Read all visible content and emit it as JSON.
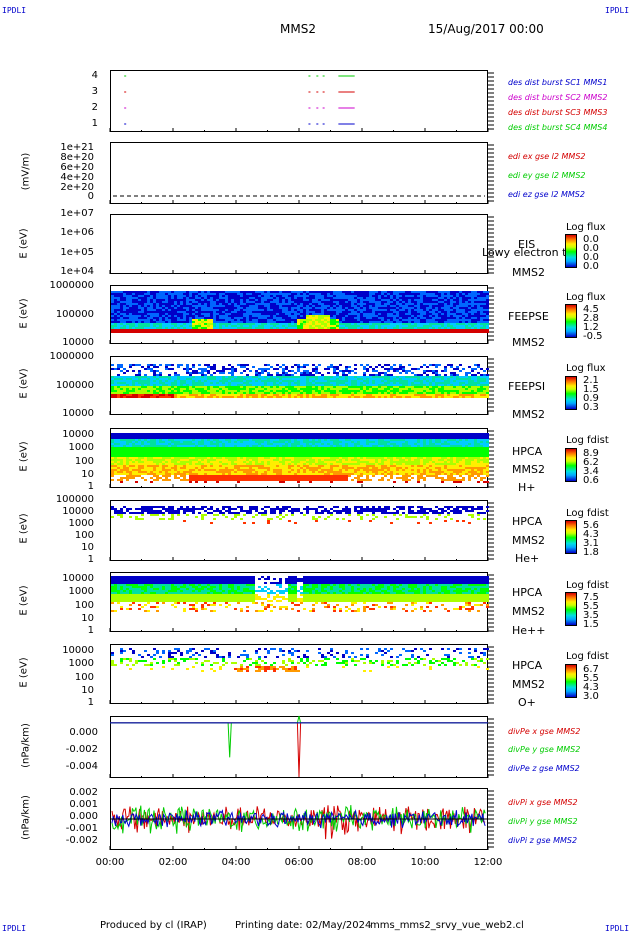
{
  "corner_label": "IPDLI",
  "header": {
    "spacecraft": "MMS2",
    "date": "15/Aug/2017 00:00"
  },
  "footer": {
    "produced_by": "Produced by cl (IRAP)",
    "printing_date": "Printing date: 02/May/2024",
    "file": "mms_mms2_srvy_vue_web2.cl"
  },
  "x_axis": {
    "ticks": [
      "00:00",
      "02:00",
      "04:00",
      "06:00",
      "08:00",
      "10:00",
      "12:00"
    ],
    "range_hours": [
      0,
      12
    ]
  },
  "colors": {
    "red": "#d40000",
    "green": "#00cc00",
    "blue": "#0000cc",
    "magenta": "#cc00cc"
  },
  "panels": {
    "dist": {
      "yticks": [
        "4",
        "3",
        "2",
        "1"
      ],
      "labels": [
        {
          "text": "des dist burst SC1 MMS1",
          "color": "#0000cc"
        },
        {
          "text": "des dist burst SC2 MMS2",
          "color": "#cc00cc"
        },
        {
          "text": "des dist burst SC3 MMS3",
          "color": "#d40000"
        },
        {
          "text": "des dist burst SC4 MMS4",
          "color": "#00cc00"
        }
      ]
    },
    "edi": {
      "ylabel": "(mV/m)",
      "yticks": [
        "1e+21",
        "8e+20",
        "6e+20",
        "4e+20",
        "2e+20",
        "0"
      ],
      "labels": [
        {
          "text": "edi ex gse l2 MMS2",
          "color": "#d40000"
        },
        {
          "text": "edi ey gse l2 MMS2",
          "color": "#00cc00"
        },
        {
          "text": "edi ez gse l2 MMS2",
          "color": "#0000cc"
        }
      ]
    },
    "eis": {
      "ylabel": "E (eV)",
      "yticks": [
        "1e+07",
        "1e+06",
        "1e+05",
        "1e+04"
      ],
      "instrument": "EIS",
      "overlay": "Lowy electron to",
      "spacecraft": "MMS2",
      "cb_title": "Log flux",
      "cb_values": [
        "0.0",
        "0.0",
        "0.0",
        "0.0"
      ]
    },
    "feepse": {
      "ylabel": "E (eV)",
      "yticks": [
        "1000000",
        "100000",
        "10000"
      ],
      "instrument": "FEEPSE",
      "spacecraft": "MMS2",
      "cb_title": "Log flux",
      "cb_values": [
        "4.5",
        "2.8",
        "1.2",
        "-0.5"
      ]
    },
    "feepsi": {
      "ylabel": "E (eV)",
      "yticks": [
        "1000000",
        "100000",
        "10000"
      ],
      "instrument": "FEEPSI",
      "spacecraft": "MMS2",
      "cb_title": "Log flux",
      "cb_values": [
        "2.1",
        "1.5",
        "0.9",
        "0.3"
      ]
    },
    "hpca_h": {
      "ylabel": "E (eV)",
      "yticks": [
        "10000",
        "1000",
        "100",
        "10",
        "1"
      ],
      "instrument": "HPCA",
      "spacecraft": "MMS2",
      "species": "H+",
      "cb_title": "Log fdist",
      "cb_values": [
        "8.9",
        "6.2",
        "3.4",
        "0.6"
      ]
    },
    "hpca_he": {
      "ylabel": "E (eV)",
      "yticks": [
        "100000",
        "10000",
        "1000",
        "100",
        "10",
        "1"
      ],
      "instrument": "HPCA",
      "spacecraft": "MMS2",
      "species": "He+",
      "cb_title": "Log fdist",
      "cb_values": [
        "5.6",
        "4.3",
        "3.1",
        "1.8"
      ]
    },
    "hpca_hepp": {
      "ylabel": "E (eV)",
      "yticks": [
        "10000",
        "1000",
        "100",
        "10",
        "1"
      ],
      "instrument": "HPCA",
      "spacecraft": "MMS2",
      "species": "He++",
      "cb_title": "Log fdist",
      "cb_values": [
        "7.5",
        "5.5",
        "3.5",
        "1.5"
      ]
    },
    "hpca_o": {
      "ylabel": "E (eV)",
      "yticks": [
        "10000",
        "1000",
        "100",
        "10",
        "1"
      ],
      "instrument": "HPCA",
      "spacecraft": "MMS2",
      "species": "O+",
      "cb_title": "Log fdist",
      "cb_values": [
        "6.7",
        "5.5",
        "4.3",
        "3.0"
      ]
    },
    "divpe": {
      "ylabel": "(nPa/km)",
      "yticks": [
        "0.000",
        "-0.002",
        "-0.004"
      ],
      "labels": [
        {
          "text": "divPe x gse MMS2",
          "color": "#d40000"
        },
        {
          "text": "divPe y gse MMS2",
          "color": "#00cc00"
        },
        {
          "text": "divPe z gse MMS2",
          "color": "#0000cc"
        }
      ]
    },
    "divpi": {
      "ylabel": "(nPa/km)",
      "yticks": [
        "0.002",
        "0.001",
        "0.000",
        "-0.001",
        "-0.002"
      ],
      "labels": [
        {
          "text": "divPi x gse MMS2",
          "color": "#d40000"
        },
        {
          "text": "divPi y gse MMS2",
          "color": "#00cc00"
        },
        {
          "text": "divPi z gse MMS2",
          "color": "#0000cc"
        }
      ]
    }
  },
  "chart_data": [
    {
      "type": "scatter",
      "panel": "des dist burst",
      "xlim": [
        0,
        12
      ],
      "yticks": [
        1,
        2,
        3,
        4
      ],
      "series": [
        {
          "name": "des dist burst SC1 MMS1",
          "y": 1,
          "x": [
            0.45,
            6.3,
            6.55,
            6.75,
            7.25,
            7.35,
            7.45
          ]
        },
        {
          "name": "des dist burst SC2 MMS2",
          "y": 2,
          "x": [
            0.45,
            6.3,
            6.55,
            6.75,
            7.25,
            7.35,
            7.45
          ]
        },
        {
          "name": "des dist burst SC3 MMS3",
          "y": 3,
          "x": [
            0.45,
            6.3,
            6.55,
            6.75,
            7.25,
            7.35,
            7.45
          ]
        },
        {
          "name": "des dist burst SC4 MMS4",
          "y": 4,
          "x": [
            0.45,
            6.3,
            6.55,
            6.75,
            7.25,
            7.35,
            7.45
          ]
        }
      ]
    },
    {
      "type": "line",
      "panel": "edi",
      "ylabel": "(mV/m)",
      "ylim": [
        0,
        1.1e+21
      ],
      "xlim": [
        0,
        12
      ],
      "series": [
        {
          "name": "edi ex gse l2 MMS2",
          "values": []
        },
        {
          "name": "edi ey gse l2 MMS2",
          "values": []
        },
        {
          "name": "edi ez gse l2 MMS2",
          "values": []
        }
      ]
    },
    {
      "type": "heatmap",
      "panel": "FEEPSE",
      "ylabel": "E (eV)",
      "yscale": "log",
      "ylim": [
        10000,
        1000000
      ],
      "colorbar": "Log flux",
      "colorbar_range": [
        -0.5,
        4.5
      ]
    },
    {
      "type": "heatmap",
      "panel": "FEEPSI",
      "ylabel": "E (eV)",
      "yscale": "log",
      "ylim": [
        10000,
        1000000
      ],
      "colorbar": "Log flux",
      "colorbar_range": [
        0.3,
        2.1
      ]
    },
    {
      "type": "heatmap",
      "panel": "HPCA H+",
      "ylabel": "E (eV)",
      "yscale": "log",
      "ylim": [
        1,
        10000
      ],
      "colorbar": "Log fdist",
      "colorbar_range": [
        0.6,
        8.9
      ]
    },
    {
      "type": "heatmap",
      "panel": "HPCA He+",
      "ylabel": "E (eV)",
      "yscale": "log",
      "ylim": [
        1,
        100000
      ],
      "colorbar": "Log fdist",
      "colorbar_range": [
        1.8,
        5.6
      ]
    },
    {
      "type": "heatmap",
      "panel": "HPCA He++",
      "ylabel": "E (eV)",
      "yscale": "log",
      "ylim": [
        1,
        10000
      ],
      "colorbar": "Log fdist",
      "colorbar_range": [
        1.5,
        7.5
      ]
    },
    {
      "type": "heatmap",
      "panel": "HPCA O+",
      "ylabel": "E (eV)",
      "yscale": "log",
      "ylim": [
        1,
        10000
      ],
      "colorbar": "Log fdist",
      "colorbar_range": [
        3.0,
        6.7
      ]
    },
    {
      "type": "line",
      "panel": "divPe",
      "ylabel": "(nPa/km)",
      "ylim": [
        -0.0048,
        0.0006
      ],
      "xlim": [
        0,
        12
      ],
      "series": [
        {
          "name": "divPe x gse MMS2",
          "x": [
            0,
            5.95,
            6.0,
            6.05,
            12
          ],
          "values": [
            0,
            0,
            -0.0047,
            0,
            0
          ]
        },
        {
          "name": "divPe y gse MMS2",
          "x": [
            0,
            3.75,
            3.8,
            3.85,
            5.95,
            6.0,
            6.05,
            12
          ],
          "values": [
            0,
            0,
            -0.003,
            0,
            0,
            0.0006,
            0,
            0
          ]
        },
        {
          "name": "divPe z gse MMS2",
          "x": [
            0,
            12
          ],
          "values": [
            0,
            0
          ]
        }
      ]
    },
    {
      "type": "line",
      "panel": "divPi",
      "ylabel": "(nPa/km)",
      "ylim": [
        -0.0024,
        0.0024
      ],
      "xlim": [
        0,
        12
      ],
      "series": [
        {
          "name": "divPi x gse MMS2",
          "amplitude": 0.0008
        },
        {
          "name": "divPi y gse MMS2",
          "amplitude": 0.0008
        },
        {
          "name": "divPi z gse MMS2",
          "amplitude": 0.0005
        }
      ]
    }
  ]
}
